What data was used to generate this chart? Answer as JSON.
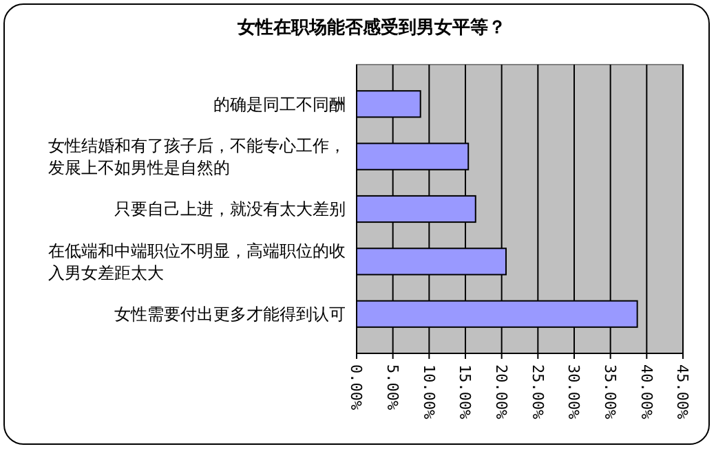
{
  "chart_data": {
    "type": "bar",
    "orientation": "horizontal",
    "title": "女性在职场能否感受到男女平等？",
    "categories": [
      "的确是同工不同酬",
      "女性结婚和有了孩子后，不能专心工作，发展上不如男性是自然的",
      "只要自己上进，就没有太大差别",
      "在低端和中端职位不明显，高端职位的收入男女差距太大",
      "女性需要付出更多才能得到认可"
    ],
    "values": [
      8.8,
      15.4,
      16.4,
      20.6,
      38.7
    ],
    "color": "#9999ff",
    "xlim": [
      0,
      45
    ],
    "xticks": [
      {
        "value": 0,
        "label": "0.00%"
      },
      {
        "value": 5,
        "label": "5.00%"
      },
      {
        "value": 10,
        "label": "10.00%"
      },
      {
        "value": 15,
        "label": "15.00%"
      },
      {
        "value": 20,
        "label": "20.00%"
      },
      {
        "value": 25,
        "label": "25.00%"
      },
      {
        "value": 30,
        "label": "30.00%"
      },
      {
        "value": 35,
        "label": "35.00%"
      },
      {
        "value": 40,
        "label": "40.00%"
      },
      {
        "value": 45,
        "label": "45.00%"
      }
    ],
    "grid": "x"
  }
}
